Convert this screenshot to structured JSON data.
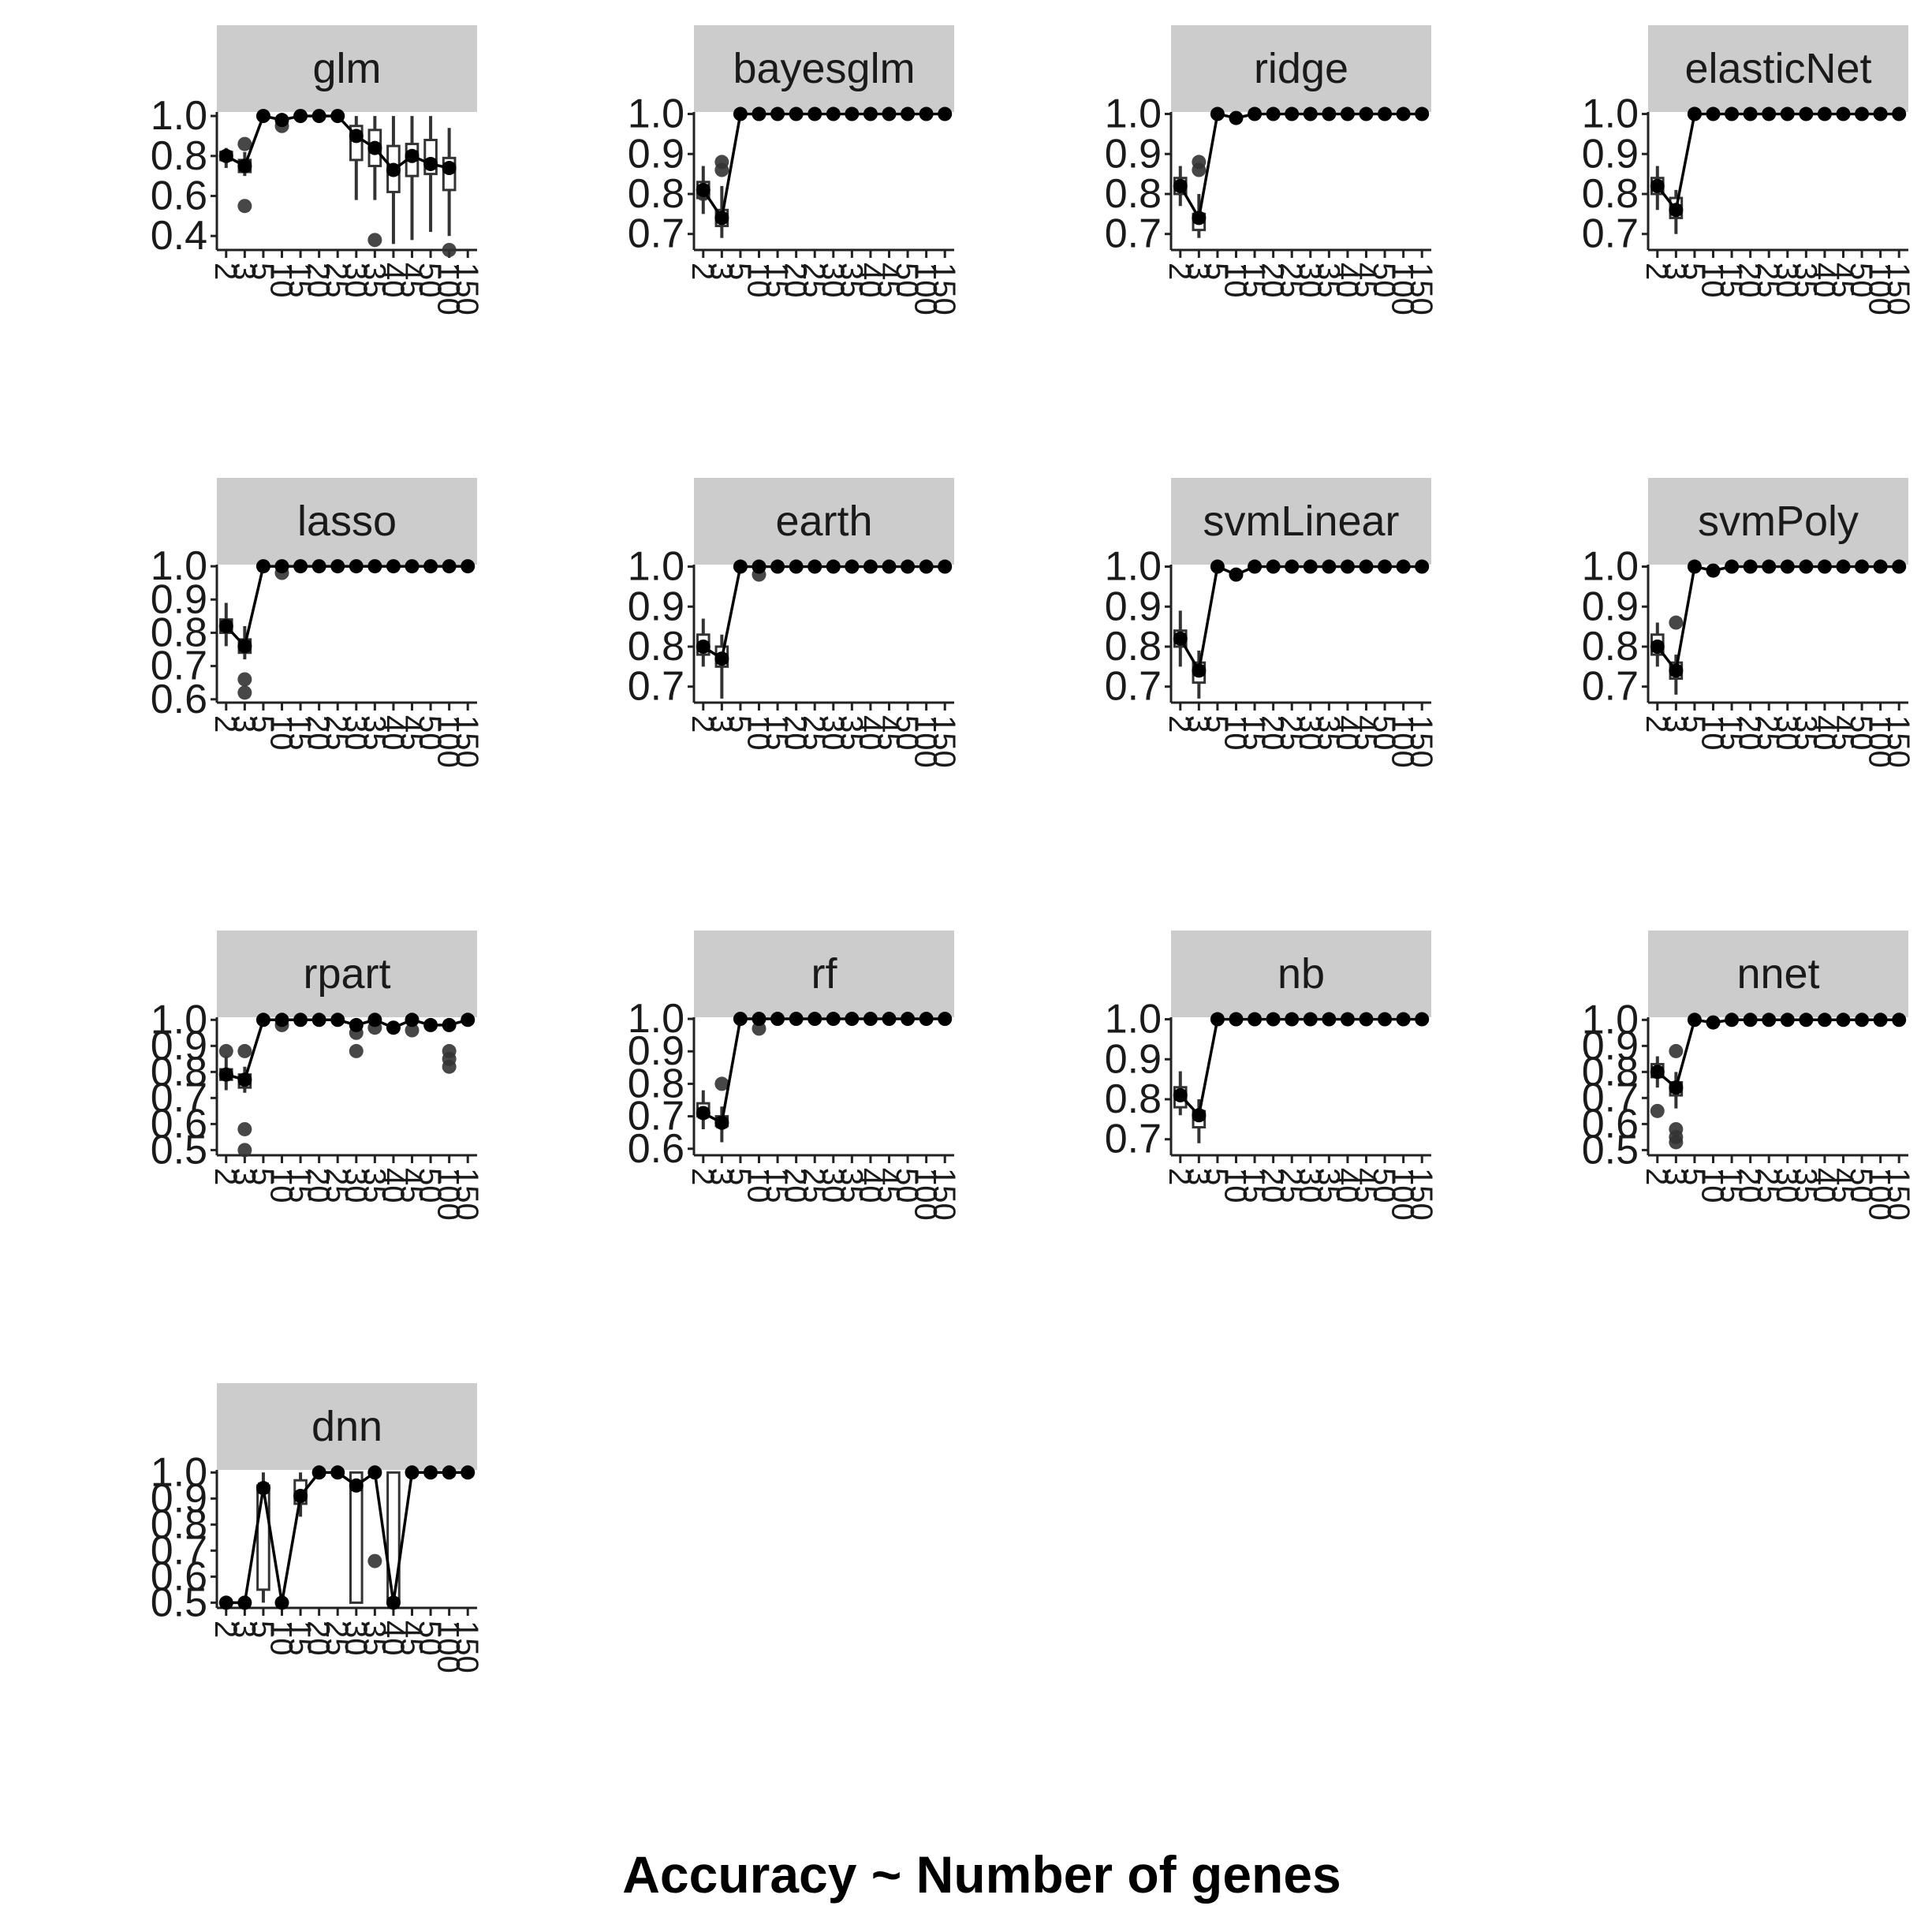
{
  "caption": "Accuracy ~ Number of genes",
  "colors": {
    "strip": "#cccccc",
    "mean": "#000000",
    "outlier": "#333333",
    "axis": "#222222"
  },
  "chart_data": {
    "type": "box",
    "grid": false,
    "title": "",
    "xlabel": "",
    "ylabel": "",
    "x_categories": [
      "2",
      "3",
      "5",
      "10",
      "15",
      "20",
      "25",
      "30",
      "35",
      "40",
      "45",
      "50",
      "100",
      "150"
    ],
    "panels": [
      {
        "name": "glm",
        "ylim": [
          0.33,
          1.02
        ],
        "yticks": [
          0.4,
          0.6,
          0.8,
          1.0
        ],
        "boxes": [
          {
            "x": 0,
            "q1": 0.78,
            "q3": 0.82,
            "lo": 0.74,
            "hi": 0.84,
            "mean": 0.8
          },
          {
            "x": 1,
            "q1": 0.72,
            "q3": 0.78,
            "lo": 0.7,
            "hi": 0.82,
            "mean": 0.75
          },
          null,
          null,
          null,
          null,
          null,
          {
            "x": 7,
            "q1": 0.78,
            "q3": 0.95,
            "lo": 0.58,
            "hi": 1.0,
            "mean": 0.9
          },
          {
            "x": 8,
            "q1": 0.75,
            "q3": 0.93,
            "lo": 0.58,
            "hi": 1.0,
            "mean": 0.84
          },
          {
            "x": 9,
            "q1": 0.62,
            "q3": 0.85,
            "lo": 0.36,
            "hi": 1.0,
            "mean": 0.73
          },
          {
            "x": 10,
            "q1": 0.7,
            "q3": 0.86,
            "lo": 0.38,
            "hi": 1.0,
            "mean": 0.8
          },
          {
            "x": 11,
            "q1": 0.71,
            "q3": 0.88,
            "lo": 0.42,
            "hi": 1.0,
            "mean": 0.76
          },
          {
            "x": 12,
            "q1": 0.63,
            "q3": 0.79,
            "lo": 0.4,
            "hi": 0.94,
            "mean": 0.74
          }
        ],
        "means": [
          0.8,
          0.75,
          1.0,
          0.98,
          1.0,
          1.0,
          1.0,
          0.9,
          0.84,
          0.73,
          0.8,
          0.76,
          0.74
        ],
        "outliers": [
          [
            1,
            0.86
          ],
          [
            1,
            0.55
          ],
          [
            3,
            0.95
          ],
          [
            8,
            0.38
          ],
          [
            12,
            0.33
          ]
        ]
      },
      {
        "name": "bayesglm",
        "ylim": [
          0.66,
          1.005
        ],
        "yticks": [
          0.7,
          0.8,
          0.9,
          1.0
        ],
        "boxes": [
          {
            "x": 0,
            "q1": 0.79,
            "q3": 0.83,
            "lo": 0.75,
            "hi": 0.87,
            "mean": 0.81
          },
          {
            "x": 1,
            "q1": 0.72,
            "q3": 0.76,
            "lo": 0.69,
            "hi": 0.82,
            "mean": 0.74
          }
        ],
        "means": [
          0.81,
          0.74,
          1.0,
          1.0,
          1.0,
          1.0,
          1.0,
          1.0,
          1.0,
          1.0,
          1.0,
          1.0,
          1.0,
          1.0
        ],
        "outliers": [
          [
            0,
            0.8
          ],
          [
            1,
            0.88
          ],
          [
            1,
            0.86
          ],
          [
            3,
            1.0
          ]
        ]
      },
      {
        "name": "ridge",
        "ylim": [
          0.66,
          1.005
        ],
        "yticks": [
          0.7,
          0.8,
          0.9,
          1.0
        ],
        "boxes": [
          {
            "x": 0,
            "q1": 0.8,
            "q3": 0.84,
            "lo": 0.77,
            "hi": 0.87,
            "mean": 0.82
          },
          {
            "x": 1,
            "q1": 0.71,
            "q3": 0.75,
            "lo": 0.69,
            "hi": 0.8,
            "mean": 0.74
          }
        ],
        "means": [
          0.82,
          0.74,
          1.0,
          0.99,
          1.0,
          1.0,
          1.0,
          1.0,
          1.0,
          1.0,
          1.0,
          1.0,
          1.0,
          1.0
        ],
        "outliers": [
          [
            1,
            0.88
          ],
          [
            1,
            0.86
          ]
        ]
      },
      {
        "name": "elasticNet",
        "ylim": [
          0.66,
          1.005
        ],
        "yticks": [
          0.7,
          0.8,
          0.9,
          1.0
        ],
        "boxes": [
          {
            "x": 0,
            "q1": 0.8,
            "q3": 0.84,
            "lo": 0.76,
            "hi": 0.87,
            "mean": 0.82
          },
          {
            "x": 1,
            "q1": 0.74,
            "q3": 0.79,
            "lo": 0.7,
            "hi": 0.81,
            "mean": 0.76
          }
        ],
        "means": [
          0.82,
          0.76,
          1.0,
          1.0,
          1.0,
          1.0,
          1.0,
          1.0,
          1.0,
          1.0,
          1.0,
          1.0,
          1.0,
          1.0
        ],
        "outliers": [
          [
            2,
            1.0
          ]
        ]
      },
      {
        "name": "lasso",
        "ylim": [
          0.59,
          1.005
        ],
        "yticks": [
          0.6,
          0.7,
          0.8,
          0.9,
          1.0
        ],
        "boxes": [
          {
            "x": 0,
            "q1": 0.8,
            "q3": 0.84,
            "lo": 0.76,
            "hi": 0.89,
            "mean": 0.82
          },
          {
            "x": 1,
            "q1": 0.74,
            "q3": 0.78,
            "lo": 0.72,
            "hi": 0.82,
            "mean": 0.76
          }
        ],
        "means": [
          0.82,
          0.76,
          1.0,
          1.0,
          1.0,
          1.0,
          1.0,
          1.0,
          1.0,
          1.0,
          1.0,
          1.0,
          1.0,
          1.0
        ],
        "outliers": [
          [
            1,
            0.66
          ],
          [
            1,
            0.62
          ],
          [
            3,
            0.98
          ]
        ]
      },
      {
        "name": "earth",
        "ylim": [
          0.66,
          1.005
        ],
        "yticks": [
          0.7,
          0.8,
          0.9,
          1.0
        ],
        "boxes": [
          {
            "x": 0,
            "q1": 0.78,
            "q3": 0.83,
            "lo": 0.75,
            "hi": 0.87,
            "mean": 0.8
          },
          {
            "x": 1,
            "q1": 0.75,
            "q3": 0.8,
            "lo": 0.67,
            "hi": 0.83,
            "mean": 0.77
          }
        ],
        "means": [
          0.8,
          0.77,
          1.0,
          1.0,
          1.0,
          1.0,
          1.0,
          1.0,
          1.0,
          1.0,
          1.0,
          1.0,
          1.0,
          1.0
        ],
        "outliers": [
          [
            3,
            0.98
          ]
        ]
      },
      {
        "name": "svmLinear",
        "ylim": [
          0.66,
          1.005
        ],
        "yticks": [
          0.7,
          0.8,
          0.9,
          1.0
        ],
        "boxes": [
          {
            "x": 0,
            "q1": 0.8,
            "q3": 0.84,
            "lo": 0.75,
            "hi": 0.89,
            "mean": 0.82
          },
          {
            "x": 1,
            "q1": 0.71,
            "q3": 0.76,
            "lo": 0.67,
            "hi": 0.79,
            "mean": 0.74
          }
        ],
        "means": [
          0.82,
          0.74,
          1.0,
          0.98,
          1.0,
          1.0,
          1.0,
          1.0,
          1.0,
          1.0,
          1.0,
          1.0,
          1.0,
          1.0
        ],
        "outliers": []
      },
      {
        "name": "svmPoly",
        "ylim": [
          0.66,
          1.005
        ],
        "yticks": [
          0.7,
          0.8,
          0.9,
          1.0
        ],
        "boxes": [
          {
            "x": 0,
            "q1": 0.78,
            "q3": 0.83,
            "lo": 0.75,
            "hi": 0.86,
            "mean": 0.8
          },
          {
            "x": 1,
            "q1": 0.72,
            "q3": 0.76,
            "lo": 0.68,
            "hi": 0.78,
            "mean": 0.74
          }
        ],
        "means": [
          0.8,
          0.74,
          1.0,
          0.99,
          1.0,
          1.0,
          1.0,
          1.0,
          1.0,
          1.0,
          1.0,
          1.0,
          1.0,
          1.0
        ],
        "outliers": [
          [
            1,
            0.86
          ]
        ]
      },
      {
        "name": "rpart",
        "ylim": [
          0.48,
          1.01
        ],
        "yticks": [
          0.5,
          0.6,
          0.7,
          0.8,
          0.9,
          1.0
        ],
        "boxes": [
          {
            "x": 0,
            "q1": 0.77,
            "q3": 0.81,
            "lo": 0.73,
            "hi": 0.86,
            "mean": 0.79
          },
          {
            "x": 1,
            "q1": 0.74,
            "q3": 0.79,
            "lo": 0.72,
            "hi": 0.82,
            "mean": 0.77
          }
        ],
        "means": [
          0.79,
          0.77,
          1.0,
          1.0,
          1.0,
          1.0,
          1.0,
          0.98,
          1.0,
          0.97,
          1.0,
          0.98,
          0.98,
          1.0
        ],
        "outliers": [
          [
            0,
            0.88
          ],
          [
            1,
            0.88
          ],
          [
            1,
            0.58
          ],
          [
            1,
            0.5
          ],
          [
            3,
            0.98
          ],
          [
            7,
            0.95
          ],
          [
            7,
            0.88
          ],
          [
            8,
            0.97
          ],
          [
            10,
            0.96
          ],
          [
            12,
            0.88
          ],
          [
            12,
            0.85
          ],
          [
            12,
            0.82
          ]
        ]
      },
      {
        "name": "rf",
        "ylim": [
          0.58,
          1.005
        ],
        "yticks": [
          0.6,
          0.7,
          0.8,
          0.9,
          1.0
        ],
        "boxes": [
          {
            "x": 0,
            "q1": 0.7,
            "q3": 0.74,
            "lo": 0.66,
            "hi": 0.78,
            "mean": 0.71
          },
          {
            "x": 1,
            "q1": 0.67,
            "q3": 0.7,
            "lo": 0.62,
            "hi": 0.73,
            "mean": 0.68
          }
        ],
        "means": [
          0.71,
          0.68,
          1.0,
          1.0,
          1.0,
          1.0,
          1.0,
          1.0,
          1.0,
          1.0,
          1.0,
          1.0,
          1.0,
          1.0
        ],
        "outliers": [
          [
            1,
            0.8
          ],
          [
            3,
            0.97
          ]
        ]
      },
      {
        "name": "nb",
        "ylim": [
          0.66,
          1.005
        ],
        "yticks": [
          0.7,
          0.8,
          0.9,
          1.0
        ],
        "boxes": [
          {
            "x": 0,
            "q1": 0.78,
            "q3": 0.83,
            "lo": 0.76,
            "hi": 0.87,
            "mean": 0.81
          },
          {
            "x": 1,
            "q1": 0.73,
            "q3": 0.77,
            "lo": 0.69,
            "hi": 0.8,
            "mean": 0.76
          }
        ],
        "means": [
          0.81,
          0.76,
          1.0,
          1.0,
          1.0,
          1.0,
          1.0,
          1.0,
          1.0,
          1.0,
          1.0,
          1.0,
          1.0,
          1.0
        ],
        "outliers": [
          [
            3,
            1.0
          ]
        ]
      },
      {
        "name": "nnet",
        "ylim": [
          0.48,
          1.01
        ],
        "yticks": [
          0.5,
          0.6,
          0.7,
          0.8,
          0.9,
          1.0
        ],
        "boxes": [
          {
            "x": 0,
            "q1": 0.78,
            "q3": 0.83,
            "lo": 0.74,
            "hi": 0.86,
            "mean": 0.8
          },
          {
            "x": 1,
            "q1": 0.71,
            "q3": 0.76,
            "lo": 0.66,
            "hi": 0.8,
            "mean": 0.74
          }
        ],
        "means": [
          0.8,
          0.74,
          1.0,
          0.99,
          1.0,
          1.0,
          1.0,
          1.0,
          1.0,
          1.0,
          1.0,
          1.0,
          1.0,
          1.0
        ],
        "outliers": [
          [
            0,
            0.65
          ],
          [
            1,
            0.88
          ],
          [
            1,
            0.58
          ],
          [
            1,
            0.55
          ],
          [
            1,
            0.53
          ]
        ]
      },
      {
        "name": "dnn",
        "ylim": [
          0.48,
          1.01
        ],
        "yticks": [
          0.5,
          0.6,
          0.7,
          0.8,
          0.9,
          1.0
        ],
        "boxes": [
          {
            "x": 2,
            "q1": 0.55,
            "q3": 0.95,
            "lo": 0.5,
            "hi": 1.0,
            "mean": 0.94
          },
          {
            "x": 4,
            "q1": 0.88,
            "q3": 0.97,
            "lo": 0.83,
            "hi": 1.0,
            "mean": 0.91
          },
          {
            "x": 7,
            "q1": 0.5,
            "q3": 1.0,
            "lo": 0.5,
            "hi": 1.0,
            "mean": 0.95
          },
          {
            "x": 9,
            "q1": 0.5,
            "q3": 1.0,
            "lo": 0.5,
            "hi": 1.0,
            "mean": 0.5
          }
        ],
        "means": [
          0.5,
          0.5,
          0.94,
          0.5,
          0.91,
          1.0,
          1.0,
          0.95,
          1.0,
          0.5,
          1.0,
          1.0,
          1.0,
          1.0
        ],
        "outliers": [
          [
            8,
            0.66
          ]
        ]
      }
    ]
  }
}
